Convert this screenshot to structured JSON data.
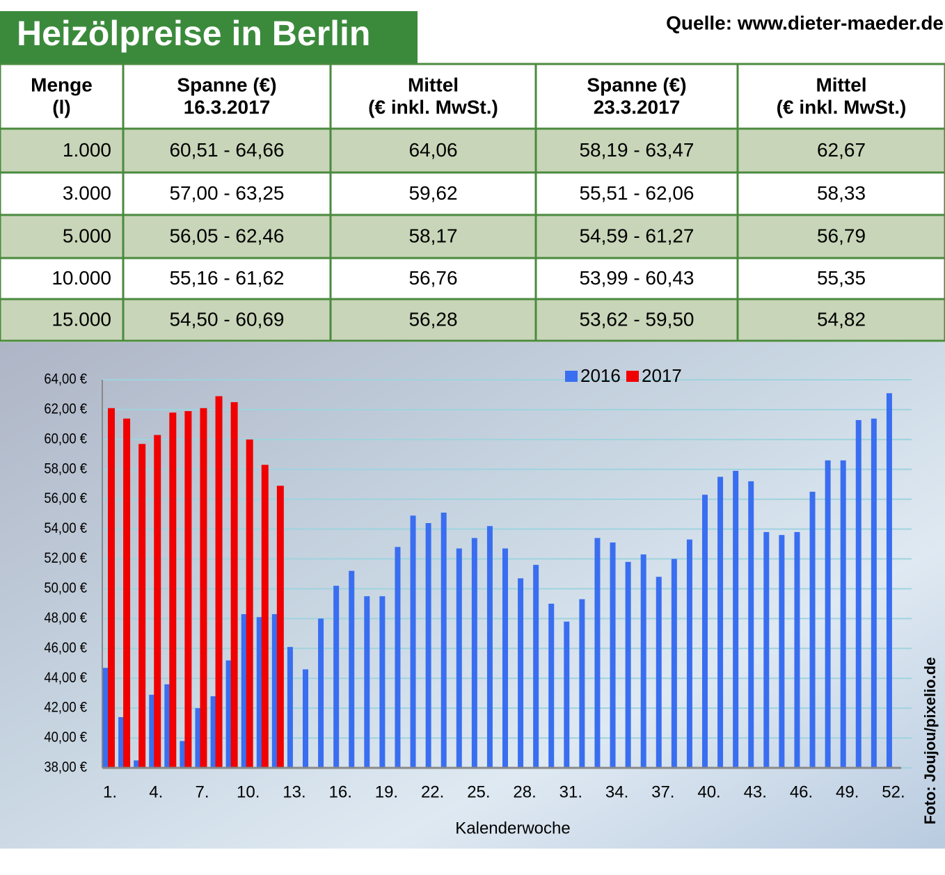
{
  "title": "Heizölpreise in Berlin",
  "source": "Quelle: www.dieter-maeder.de",
  "table": {
    "header": [
      [
        "Menge",
        "(l)"
      ],
      [
        "Spanne (€)",
        "16.3.2017"
      ],
      [
        "Mittel",
        "(€ inkl. MwSt.)"
      ],
      [
        "Spanne (€)",
        "23.3.2017"
      ],
      [
        "Mittel",
        "(€ inkl. MwSt.)"
      ]
    ],
    "rows": [
      [
        "1.000",
        "60,51 - 64,66",
        "64,06",
        "58,19 - 63,47",
        "62,67"
      ],
      [
        "3.000",
        "57,00 - 63,25",
        "59,62",
        "55,51 - 62,06",
        "58,33"
      ],
      [
        "5.000",
        "56,05 - 62,46",
        "58,17",
        "54,59 - 61,27",
        "56,79"
      ],
      [
        "10.000",
        "55,16 - 61,62",
        "56,76",
        "53,99 - 60,43",
        "55,35"
      ],
      [
        "15.000",
        "54,50 - 60,69",
        "56,28",
        "53,62 - 59,50",
        "54,82"
      ]
    ]
  },
  "chart_data": {
    "type": "bar",
    "x_label": "Kalenderwoche",
    "categories": [
      "1.",
      null,
      null,
      "4.",
      null,
      null,
      "7.",
      null,
      null,
      "10.",
      null,
      null,
      "13.",
      null,
      null,
      "16.",
      null,
      null,
      "19.",
      null,
      null,
      "22.",
      null,
      null,
      "25.",
      null,
      null,
      "28.",
      null,
      null,
      "31.",
      null,
      null,
      "34.",
      null,
      null,
      "37.",
      null,
      null,
      "40.",
      null,
      null,
      "43.",
      null,
      null,
      "46.",
      null,
      null,
      "49.",
      null,
      null,
      "52."
    ],
    "series": [
      {
        "name": "2016",
        "color": "#3a6ef0",
        "values": [
          44.7,
          41.4,
          38.5,
          42.9,
          43.6,
          39.8,
          42.0,
          42.8,
          45.2,
          48.3,
          48.1,
          48.3,
          46.1,
          44.6,
          48.0,
          50.2,
          51.2,
          49.5,
          49.5,
          52.8,
          54.9,
          54.4,
          55.1,
          52.7,
          53.4,
          54.2,
          52.7,
          50.7,
          51.6,
          49.0,
          47.8,
          49.3,
          53.4,
          53.1,
          51.8,
          52.3,
          50.8,
          52.0,
          53.3,
          56.3,
          57.5,
          57.9,
          57.2,
          53.8,
          53.6,
          53.8,
          56.5,
          58.6,
          58.6,
          61.3,
          61.4,
          63.1
        ]
      },
      {
        "name": "2017",
        "color": "#f00000",
        "values": [
          62.1,
          61.4,
          59.7,
          60.3,
          61.8,
          61.9,
          62.1,
          62.9,
          62.5,
          60.0,
          58.3,
          56.9,
          null,
          null,
          null,
          null,
          null,
          null,
          null,
          null,
          null,
          null,
          null,
          null,
          null,
          null,
          null,
          null,
          null,
          null,
          null,
          null,
          null,
          null,
          null,
          null,
          null,
          null,
          null,
          null,
          null,
          null,
          null,
          null,
          null,
          null,
          null,
          null,
          null,
          null,
          null,
          null
        ]
      }
    ],
    "ylim": [
      38,
      64
    ],
    "yticks": [
      {
        "value": 38,
        "label": "38,00 €"
      },
      {
        "value": 40,
        "label": "40,00 €"
      },
      {
        "value": 42,
        "label": "42,00 €"
      },
      {
        "value": 44,
        "label": "44,00 €"
      },
      {
        "value": 46,
        "label": "46,00 €"
      },
      {
        "value": 48,
        "label": "48,00 €"
      },
      {
        "value": 50,
        "label": "50,00 €"
      },
      {
        "value": 52,
        "label": "52,00 €"
      },
      {
        "value": 54,
        "label": "54,00 €"
      },
      {
        "value": 56,
        "label": "56,00 €"
      },
      {
        "value": 58,
        "label": "58,00 €"
      },
      {
        "value": 60,
        "label": "60,00 €"
      },
      {
        "value": 62,
        "label": "62,00 €"
      },
      {
        "value": 64,
        "label": "64,00 €"
      }
    ],
    "grid": true,
    "legend": "top"
  },
  "photo_credit": "Foto: Joujou/pixelio.de"
}
